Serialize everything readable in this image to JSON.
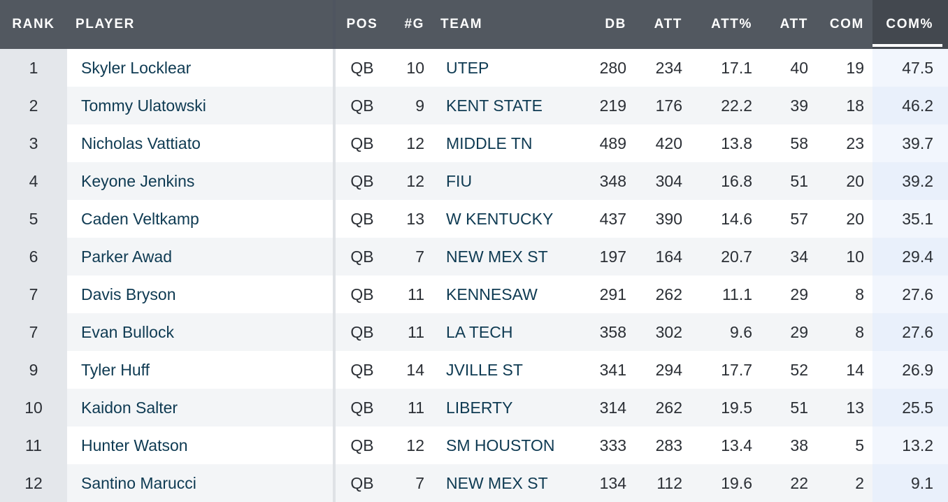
{
  "columns": {
    "rank": "RANK",
    "player": "PLAYER",
    "pos": "POS",
    "games": "#G",
    "team": "TEAM",
    "db": "DB",
    "att": "ATT",
    "att_pct": "ATT%",
    "att2": "ATT",
    "com": "COM",
    "com_pct": "COM%"
  },
  "sorted_column": "COM%",
  "colors": {
    "header_bg": "#525860",
    "link_text": "#0e3a52",
    "sorted_col_bg": "#e9f0fb"
  },
  "rows": [
    {
      "rank": "1",
      "player": "Skyler Locklear",
      "pos": "QB",
      "games": "10",
      "team": "UTEP",
      "db": "280",
      "att": "234",
      "att_pct": "17.1",
      "att2": "40",
      "com": "19",
      "com_pct": "47.5"
    },
    {
      "rank": "2",
      "player": "Tommy Ulatowski",
      "pos": "QB",
      "games": "9",
      "team": "KENT STATE",
      "db": "219",
      "att": "176",
      "att_pct": "22.2",
      "att2": "39",
      "com": "18",
      "com_pct": "46.2"
    },
    {
      "rank": "3",
      "player": "Nicholas Vattiato",
      "pos": "QB",
      "games": "12",
      "team": "MIDDLE TN",
      "db": "489",
      "att": "420",
      "att_pct": "13.8",
      "att2": "58",
      "com": "23",
      "com_pct": "39.7"
    },
    {
      "rank": "4",
      "player": "Keyone Jenkins",
      "pos": "QB",
      "games": "12",
      "team": "FIU",
      "db": "348",
      "att": "304",
      "att_pct": "16.8",
      "att2": "51",
      "com": "20",
      "com_pct": "39.2"
    },
    {
      "rank": "5",
      "player": "Caden Veltkamp",
      "pos": "QB",
      "games": "13",
      "team": "W KENTUCKY",
      "db": "437",
      "att": "390",
      "att_pct": "14.6",
      "att2": "57",
      "com": "20",
      "com_pct": "35.1"
    },
    {
      "rank": "6",
      "player": "Parker Awad",
      "pos": "QB",
      "games": "7",
      "team": "NEW MEX ST",
      "db": "197",
      "att": "164",
      "att_pct": "20.7",
      "att2": "34",
      "com": "10",
      "com_pct": "29.4"
    },
    {
      "rank": "7",
      "player": "Davis Bryson",
      "pos": "QB",
      "games": "11",
      "team": "KENNESAW",
      "db": "291",
      "att": "262",
      "att_pct": "11.1",
      "att2": "29",
      "com": "8",
      "com_pct": "27.6"
    },
    {
      "rank": "7",
      "player": "Evan Bullock",
      "pos": "QB",
      "games": "11",
      "team": "LA TECH",
      "db": "358",
      "att": "302",
      "att_pct": "9.6",
      "att2": "29",
      "com": "8",
      "com_pct": "27.6"
    },
    {
      "rank": "9",
      "player": "Tyler Huff",
      "pos": "QB",
      "games": "14",
      "team": "JVILLE ST",
      "db": "341",
      "att": "294",
      "att_pct": "17.7",
      "att2": "52",
      "com": "14",
      "com_pct": "26.9"
    },
    {
      "rank": "10",
      "player": "Kaidon Salter",
      "pos": "QB",
      "games": "11",
      "team": "LIBERTY",
      "db": "314",
      "att": "262",
      "att_pct": "19.5",
      "att2": "51",
      "com": "13",
      "com_pct": "25.5"
    },
    {
      "rank": "11",
      "player": "Hunter Watson",
      "pos": "QB",
      "games": "12",
      "team": "SM HOUSTON",
      "db": "333",
      "att": "283",
      "att_pct": "13.4",
      "att2": "38",
      "com": "5",
      "com_pct": "13.2"
    },
    {
      "rank": "12",
      "player": "Santino Marucci",
      "pos": "QB",
      "games": "7",
      "team": "NEW MEX ST",
      "db": "134",
      "att": "112",
      "att_pct": "19.6",
      "att2": "22",
      "com": "2",
      "com_pct": "9.1"
    }
  ]
}
